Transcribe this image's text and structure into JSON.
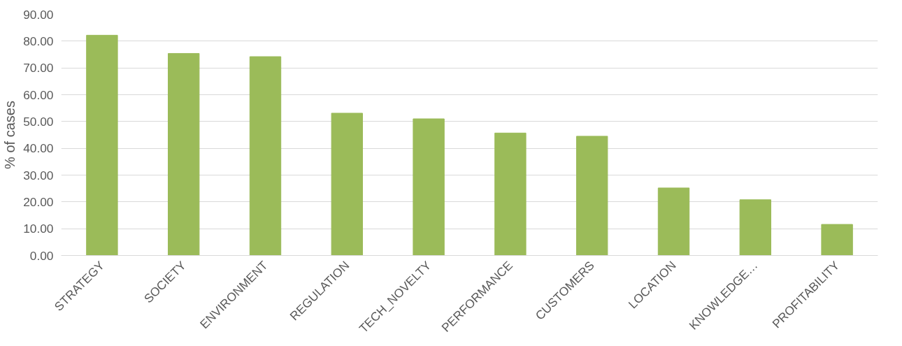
{
  "chart_data": {
    "type": "bar",
    "ylabel": "% of cases",
    "categories": [
      "STRATEGY",
      "SOCIETY",
      "ENVIRONMENT",
      "REGULATION",
      "TECH_NOVELTY",
      "PERFORMANCE",
      "CUSTOMERS",
      "LOCATION",
      "KNOWLEDGE…",
      "PROFITABILITY"
    ],
    "values": [
      82.2,
      75.4,
      74.2,
      53.1,
      51.0,
      45.7,
      44.5,
      25.2,
      20.8,
      11.6
    ],
    "color": "#9bbb59",
    "ylim": [
      0,
      90
    ],
    "yticks": [
      {
        "value": 0,
        "label": "0.00"
      },
      {
        "value": 10,
        "label": "10.00"
      },
      {
        "value": 20,
        "label": "20.00"
      },
      {
        "value": 30,
        "label": "30.00"
      },
      {
        "value": 40,
        "label": "40.00"
      },
      {
        "value": 50,
        "label": "50.00"
      },
      {
        "value": 60,
        "label": "60.00"
      },
      {
        "value": 70,
        "label": "70.00"
      },
      {
        "value": 80,
        "label": "80.00"
      },
      {
        "value": 90,
        "label": "90.00"
      }
    ],
    "grid": "y"
  }
}
